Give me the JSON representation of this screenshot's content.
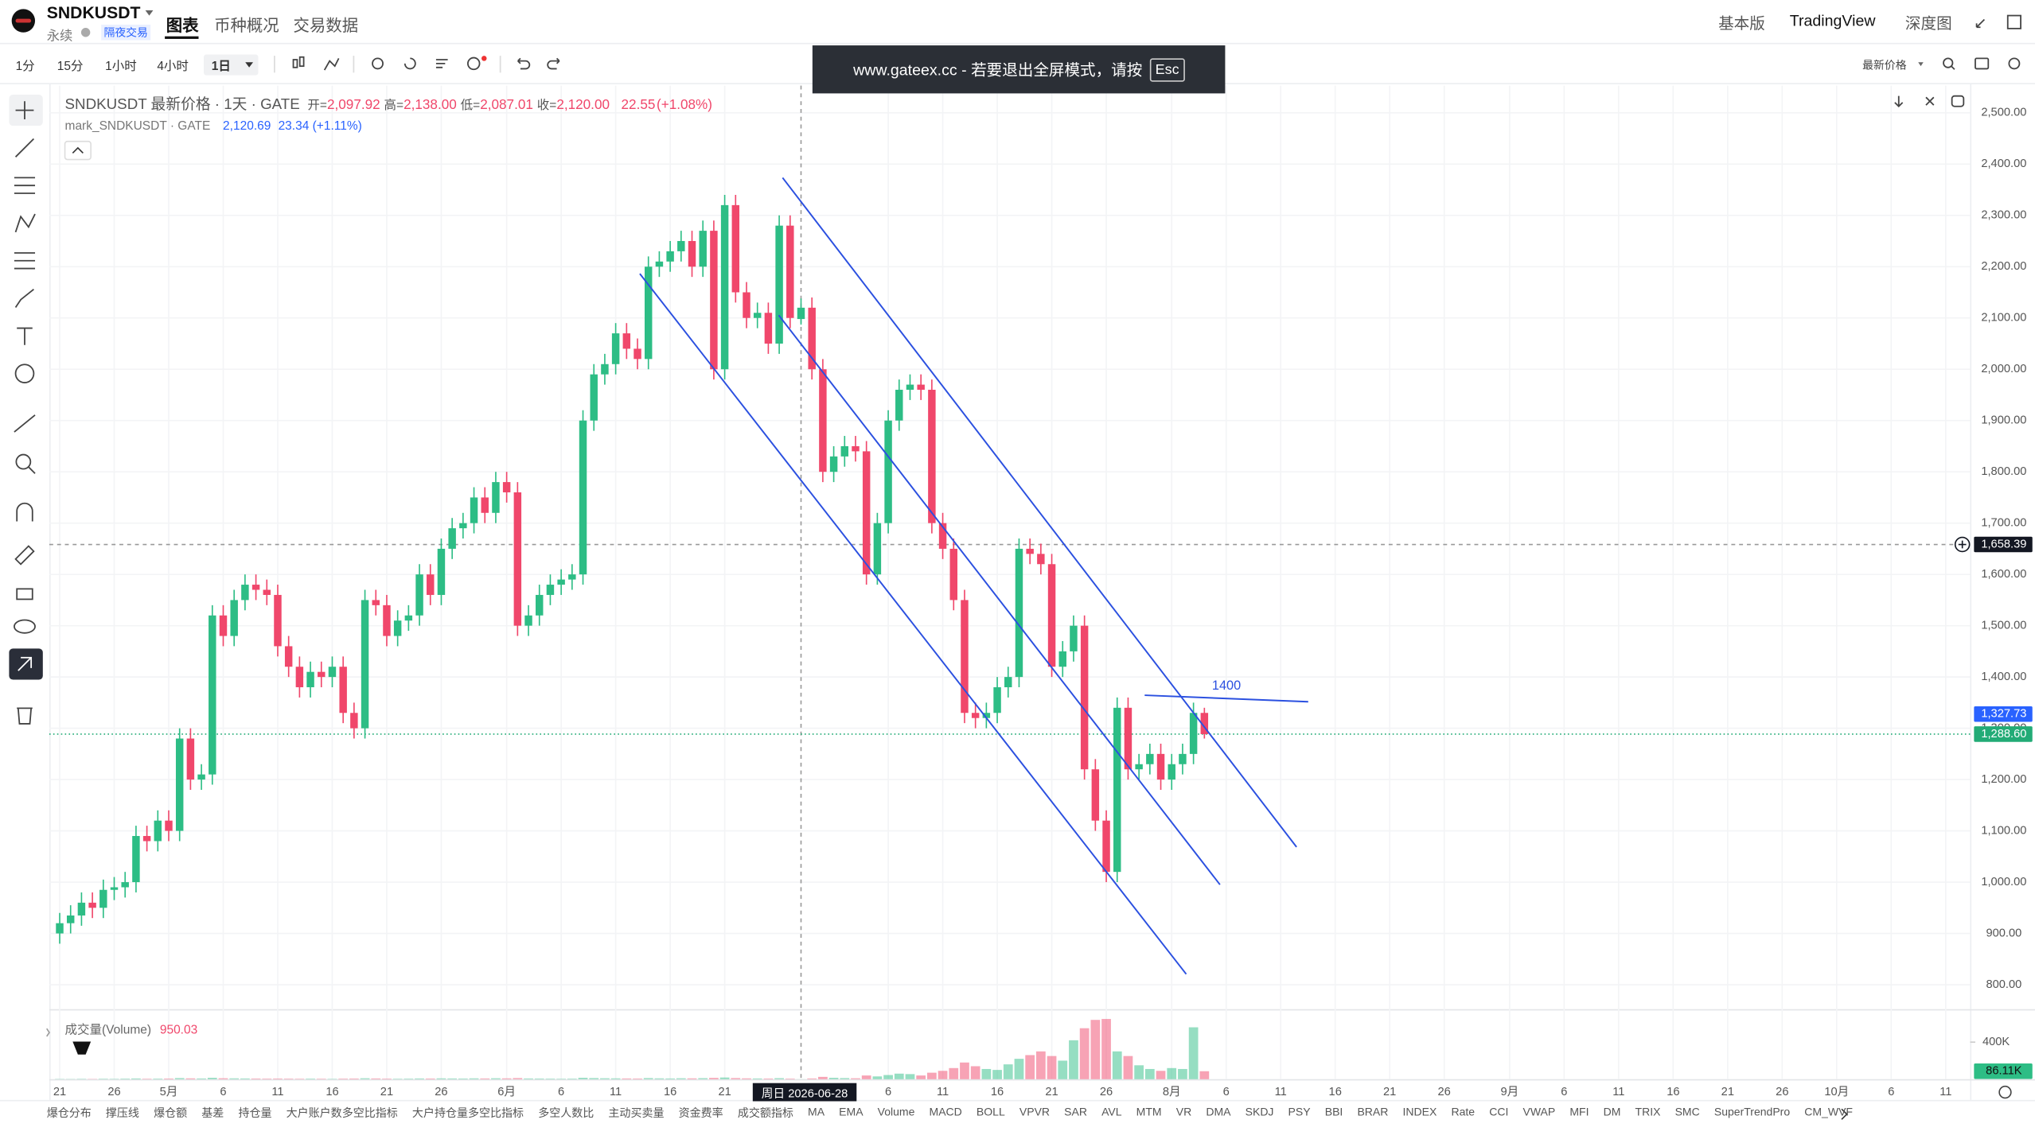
{
  "header": {
    "symbol": "SNDKUSDT",
    "contract": "永续",
    "badge": "隔夜交易",
    "tabs": [
      "图表",
      "币种概况",
      "交易数据"
    ],
    "right_links": [
      "基本版",
      "TradingView",
      "深度图"
    ]
  },
  "toolbar": {
    "intervals": [
      "1分",
      "15分",
      "1小时",
      "4小时",
      "1日"
    ],
    "price_type": "最新价格"
  },
  "notice": {
    "text": "www.gateex.cc - 若要退出全屏模式，请按",
    "key": "Esc"
  },
  "legend": {
    "title": "SNDKUSDT 最新价格 · 1天 · GATE",
    "fields": [
      {
        "label": "开=",
        "value": "2,097.92"
      },
      {
        "label": "高=",
        "value": "2,138.00"
      },
      {
        "label": "低=",
        "value": "2,087.01"
      },
      {
        "label": "收=",
        "value": "2,120.00"
      }
    ],
    "change": "22.55",
    "change_pct": "(+1.08%)",
    "mark_title": "mark_SNDKUSDT · GATE",
    "mark_price": "2,120.69",
    "mark_change": "23.34 (+1.11%)"
  },
  "chart_data": {
    "type": "candlestick",
    "up_color": "#2dbd85",
    "down_color": "#f0476b",
    "grid": true,
    "x": [
      "2026-04-21",
      "2026-04-22",
      "2026-04-23",
      "2026-04-24",
      "2026-04-25",
      "2026-04-26",
      "2026-04-27",
      "2026-04-28",
      "2026-04-29",
      "2026-04-30",
      "2026-05-01",
      "2026-05-02",
      "2026-05-03",
      "2026-05-04",
      "2026-05-05",
      "2026-05-06",
      "2026-05-07",
      "2026-05-08",
      "2026-05-09",
      "2026-05-10",
      "2026-05-11",
      "2026-05-12",
      "2026-05-13",
      "2026-05-14",
      "2026-05-15",
      "2026-05-16",
      "2026-05-17",
      "2026-05-18",
      "2026-05-19",
      "2026-05-20",
      "2026-05-21",
      "2026-05-22",
      "2026-05-23",
      "2026-05-24",
      "2026-05-25",
      "2026-05-26",
      "2026-05-27",
      "2026-05-28",
      "2026-05-29",
      "2026-05-30",
      "2026-05-31",
      "2026-06-01",
      "2026-06-02",
      "2026-06-03",
      "2026-06-04",
      "2026-06-05",
      "2026-06-06",
      "2026-06-07",
      "2026-06-08",
      "2026-06-09",
      "2026-06-10",
      "2026-06-11",
      "2026-06-12",
      "2026-06-13",
      "2026-06-14",
      "2026-06-15",
      "2026-06-16",
      "2026-06-17",
      "2026-06-18",
      "2026-06-19",
      "2026-06-20",
      "2026-06-21",
      "2026-06-22",
      "2026-06-23",
      "2026-06-24",
      "2026-06-25",
      "2026-06-26",
      "2026-06-27",
      "2026-06-28",
      "2026-06-29",
      "2026-06-30",
      "2026-07-01",
      "2026-07-02",
      "2026-07-03",
      "2026-07-04",
      "2026-07-05",
      "2026-07-06",
      "2026-07-07",
      "2026-07-08",
      "2026-07-09",
      "2026-07-10",
      "2026-07-11",
      "2026-07-12",
      "2026-07-13",
      "2026-07-14",
      "2026-07-15",
      "2026-07-16",
      "2026-07-17",
      "2026-07-18",
      "2026-07-19",
      "2026-07-20",
      "2026-07-21",
      "2026-07-22",
      "2026-07-23",
      "2026-07-24",
      "2026-07-25",
      "2026-07-26",
      "2026-07-27",
      "2026-07-28",
      "2026-07-29",
      "2026-07-30",
      "2026-07-31",
      "2026-08-01",
      "2026-08-02",
      "2026-08-03",
      "2026-08-04"
    ],
    "open": [
      900,
      920,
      935,
      960,
      950,
      985,
      990,
      1000,
      1090,
      1080,
      1120,
      1100,
      1280,
      1200,
      1210,
      1520,
      1480,
      1550,
      1580,
      1570,
      1560,
      1460,
      1420,
      1380,
      1410,
      1400,
      1420,
      1330,
      1300,
      1550,
      1540,
      1480,
      1510,
      1520,
      1600,
      1560,
      1650,
      1690,
      1700,
      1750,
      1720,
      1780,
      1760,
      1500,
      1520,
      1560,
      1580,
      1590,
      1600,
      1900,
      1990,
      2010,
      2070,
      2040,
      2020,
      2200,
      2210,
      2230,
      2250,
      2200,
      2270,
      2000,
      2320,
      2150,
      2100,
      2110,
      2050,
      2280,
      2097.92,
      2120,
      2000,
      1800,
      1830,
      1850,
      1840,
      1600,
      1700,
      1900,
      1960,
      1970,
      1960,
      1700,
      1650,
      1550,
      1330,
      1320,
      1330,
      1380,
      1400,
      1650,
      1640,
      1620,
      1420,
      1450,
      1500,
      1220,
      1120,
      1020,
      1340,
      1220,
      1230,
      1250,
      1200,
      1230,
      1250,
      1330
    ],
    "high": [
      940,
      955,
      980,
      980,
      1005,
      1010,
      1020,
      1110,
      1110,
      1140,
      1140,
      1300,
      1300,
      1230,
      1540,
      1540,
      1570,
      1600,
      1600,
      1590,
      1580,
      1480,
      1440,
      1430,
      1430,
      1440,
      1440,
      1350,
      1570,
      1570,
      1560,
      1530,
      1540,
      1620,
      1620,
      1670,
      1710,
      1720,
      1770,
      1770,
      1800,
      1800,
      1780,
      1540,
      1580,
      1600,
      1610,
      1620,
      1920,
      2010,
      2030,
      2090,
      2090,
      2060,
      2220,
      2230,
      2250,
      2270,
      2270,
      2290,
      2290,
      2340,
      2340,
      2170,
      2130,
      2130,
      2300,
      2300,
      2138,
      2140,
      2020,
      1850,
      1870,
      1870,
      1860,
      1720,
      1920,
      1980,
      1990,
      1990,
      1980,
      1720,
      1670,
      1570,
      1350,
      1350,
      1400,
      1420,
      1670,
      1670,
      1660,
      1640,
      1470,
      1520,
      1520,
      1240,
      1140,
      1360,
      1360,
      1250,
      1270,
      1270,
      1250,
      1270,
      1350,
      1340
    ],
    "low": [
      880,
      900,
      915,
      930,
      930,
      965,
      970,
      980,
      1060,
      1060,
      1080,
      1080,
      1180,
      1180,
      1190,
      1460,
      1460,
      1530,
      1550,
      1540,
      1440,
      1400,
      1360,
      1360,
      1380,
      1380,
      1310,
      1280,
      1280,
      1520,
      1460,
      1460,
      1490,
      1500,
      1540,
      1540,
      1630,
      1670,
      1680,
      1700,
      1700,
      1740,
      1480,
      1480,
      1500,
      1540,
      1560,
      1570,
      1580,
      1880,
      1970,
      1990,
      2020,
      2000,
      2000,
      2180,
      2190,
      2210,
      2180,
      2180,
      1980,
      1980,
      2130,
      2080,
      2080,
      2030,
      2030,
      2080,
      2087.01,
      1980,
      1780,
      1780,
      1810,
      1820,
      1580,
      1580,
      1680,
      1880,
      1940,
      1940,
      1680,
      1630,
      1530,
      1310,
      1300,
      1300,
      1310,
      1360,
      1380,
      1620,
      1600,
      1400,
      1400,
      1430,
      1200,
      1100,
      1000,
      1000,
      1200,
      1200,
      1210,
      1180,
      1180,
      1210,
      1230,
      1280
    ],
    "close": [
      920,
      935,
      960,
      950,
      985,
      990,
      1000,
      1090,
      1080,
      1120,
      1100,
      1280,
      1200,
      1210,
      1520,
      1480,
      1550,
      1580,
      1570,
      1560,
      1460,
      1420,
      1380,
      1410,
      1400,
      1420,
      1330,
      1300,
      1550,
      1540,
      1480,
      1510,
      1520,
      1600,
      1560,
      1650,
      1690,
      1700,
      1750,
      1720,
      1780,
      1760,
      1500,
      1520,
      1560,
      1580,
      1590,
      1600,
      1900,
      1990,
      2010,
      2070,
      2040,
      2020,
      2200,
      2210,
      2230,
      2250,
      2200,
      2270,
      2000,
      2320,
      2150,
      2100,
      2110,
      2050,
      2280,
      2100,
      2120,
      2000,
      1800,
      1830,
      1850,
      1840,
      1600,
      1700,
      1900,
      1960,
      1970,
      1960,
      1700,
      1650,
      1550,
      1330,
      1320,
      1330,
      1380,
      1400,
      1650,
      1640,
      1620,
      1420,
      1450,
      1500,
      1220,
      1120,
      1020,
      1340,
      1220,
      1230,
      1250,
      1200,
      1230,
      1250,
      1330,
      1288.6
    ],
    "ylim": [
      760,
      2553
    ],
    "yticks": [
      {
        "value": 800,
        "label": "800.00"
      },
      {
        "value": 900,
        "label": "900.00"
      },
      {
        "value": 1000,
        "label": "1,000.00"
      },
      {
        "value": 1100,
        "label": "1,100.00"
      },
      {
        "value": 1200,
        "label": "1,200.00"
      },
      {
        "value": 1300,
        "label": "1,300.00"
      },
      {
        "value": 1400,
        "label": "1,400.00"
      },
      {
        "value": 1500,
        "label": "1,500.00"
      },
      {
        "value": 1600,
        "label": "1,600.00"
      },
      {
        "value": 1700,
        "label": "1,700.00"
      },
      {
        "value": 1800,
        "label": "1,800.00"
      },
      {
        "value": 1900,
        "label": "1,900.00"
      },
      {
        "value": 2000,
        "label": "2,000.00"
      },
      {
        "value": 2100,
        "label": "2,100.00"
      },
      {
        "value": 2200,
        "label": "2,200.00"
      },
      {
        "value": 2300,
        "label": "2,300.00"
      },
      {
        "value": 2400,
        "label": "2,400.00"
      },
      {
        "value": 2500,
        "label": "2,500.00"
      }
    ],
    "xlim": [
      "2026-04-21",
      "2026-10-13"
    ],
    "xticks": [
      {
        "value": "2026-04-21",
        "label": "21"
      },
      {
        "value": "2026-04-26",
        "label": "26"
      },
      {
        "value": "2026-05-01",
        "label": "5月"
      },
      {
        "value": "2026-05-06",
        "label": "6"
      },
      {
        "value": "2026-05-11",
        "label": "11"
      },
      {
        "value": "2026-05-16",
        "label": "16"
      },
      {
        "value": "2026-05-21",
        "label": "21"
      },
      {
        "value": "2026-05-26",
        "label": "26"
      },
      {
        "value": "2026-06-01",
        "label": "6月"
      },
      {
        "value": "2026-06-06",
        "label": "6"
      },
      {
        "value": "2026-06-11",
        "label": "11"
      },
      {
        "value": "2026-06-16",
        "label": "16"
      },
      {
        "value": "2026-06-21",
        "label": "21"
      },
      {
        "value": "2026-07-06",
        "label": "6"
      },
      {
        "value": "2026-07-11",
        "label": "11"
      },
      {
        "value": "2026-07-16",
        "label": "16"
      },
      {
        "value": "2026-07-21",
        "label": "21"
      },
      {
        "value": "2026-07-26",
        "label": "26"
      },
      {
        "value": "2026-08-01",
        "label": "8月"
      },
      {
        "value": "2026-08-06",
        "label": "6"
      },
      {
        "value": "2026-08-11",
        "label": "11"
      },
      {
        "value": "2026-08-16",
        "label": "16"
      },
      {
        "value": "2026-08-21",
        "label": "21"
      },
      {
        "value": "2026-08-26",
        "label": "26"
      },
      {
        "value": "2026-09-01",
        "label": "9月"
      },
      {
        "value": "2026-09-06",
        "label": "6"
      },
      {
        "value": "2026-09-11",
        "label": "11"
      },
      {
        "value": "2026-09-16",
        "label": "16"
      },
      {
        "value": "2026-09-21",
        "label": "21"
      },
      {
        "value": "2026-09-26",
        "label": "26"
      },
      {
        "value": "2026-10-01",
        "label": "10月"
      },
      {
        "value": "2026-10-06",
        "label": "6"
      },
      {
        "value": "2026-10-11",
        "label": "11"
      }
    ],
    "crosshair": {
      "date_label": "周日 2026-06-28",
      "price": {
        "value": 1658.39,
        "label": "1,658.39"
      }
    },
    "price_labels": [
      {
        "value": 1327.73,
        "label": "1,327.73",
        "color": "#2962ff"
      },
      {
        "value": 1288.6,
        "label": "1,288.60",
        "color": "#22ab76"
      }
    ],
    "annotation": "1400",
    "volume": {
      "title": "成交量(Volume)",
      "values": [
        3000,
        2500,
        4000,
        3000,
        5000,
        4000,
        6000,
        8000,
        5000,
        6000,
        7000,
        12000,
        9000,
        8000,
        15000,
        10000,
        9000,
        8000,
        7000,
        6000,
        7000,
        6000,
        5000,
        6000,
        5000,
        4000,
        6000,
        7000,
        10000,
        8000,
        6000,
        5000,
        6000,
        8000,
        7000,
        9000,
        8000,
        7000,
        9000,
        8000,
        10000,
        9000,
        12000,
        8000,
        7000,
        6000,
        5000,
        6000,
        15000,
        12000,
        10000,
        9000,
        8000,
        7000,
        12000,
        9000,
        8000,
        10000,
        9000,
        11000,
        14000,
        18000,
        12000,
        9000,
        8000,
        7000,
        11000,
        6000,
        950.03,
        8000,
        25000,
        15000,
        12000,
        10000,
        40000,
        30000,
        45000,
        60000,
        55000,
        40000,
        70000,
        90000,
        120000,
        180000,
        140000,
        110000,
        100000,
        160000,
        220000,
        260000,
        300000,
        250000,
        200000,
        420000,
        550000,
        640000,
        650000,
        300000,
        250000,
        150000,
        110000,
        90000,
        120000,
        110000,
        560000,
        86110
      ],
      "ylim": [
        0,
        700000
      ],
      "yticks": [
        {
          "value": 400000,
          "label": "400K"
        }
      ],
      "last_label": {
        "value": 86110,
        "label": "86.11K"
      }
    }
  },
  "indicators": [
    "爆仓分布",
    "撑压线",
    "爆仓额",
    "基差",
    "持仓量",
    "大户账户数多空比指标",
    "大户持仓量多空比指标",
    "多空人数比",
    "主动买卖量",
    "资金费率",
    "成交额指标",
    "MA",
    "EMA",
    "Volume",
    "MACD",
    "BOLL",
    "VPVR",
    "SAR",
    "AVL",
    "MTM",
    "VR",
    "DMA",
    "SKDJ",
    "PSY",
    "BBI",
    "BRAR",
    "INDEX",
    "Rate",
    "CCI",
    "VWAP",
    "MFI",
    "DM",
    "TRIX",
    "SMC",
    "SuperTrendPro",
    "CM_WVF"
  ]
}
